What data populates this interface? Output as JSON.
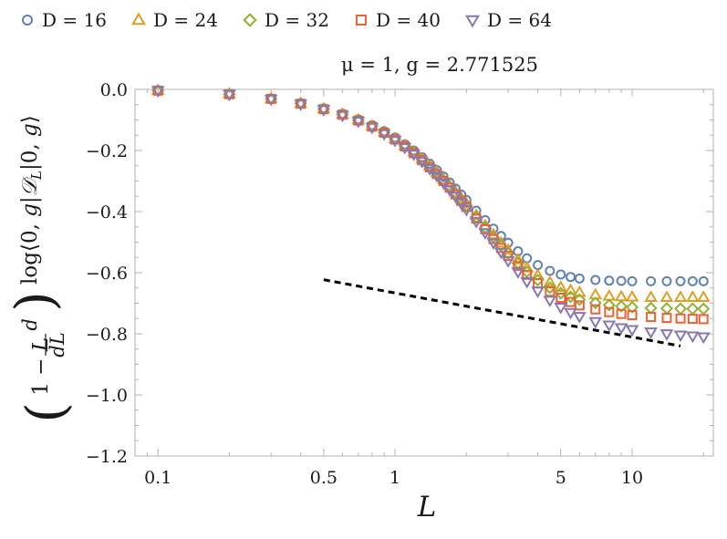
{
  "chart_data": {
    "type": "scatter",
    "title": "μ = 1,  g = 2.771525",
    "xlabel": "L",
    "ylabel": "(1 − L d/dL) log⟨0, g|𝒟_L|0, g⟩",
    "xscale": "log",
    "xlim": [
      0.08,
      22
    ],
    "ylim": [
      -1.2,
      0.0
    ],
    "x_ticks": [
      0.1,
      0.5,
      1,
      5,
      10
    ],
    "x_tick_labels": [
      "0.1",
      "0.5",
      "1",
      "5",
      "10"
    ],
    "y_ticks": [
      0.0,
      -0.2,
      -0.4,
      -0.6,
      -0.8,
      -1.0,
      -1.2
    ],
    "y_tick_labels": [
      "0.0",
      "−0.2",
      "−0.4",
      "−0.6",
      "−0.8",
      "−1.0",
      "−1.2"
    ],
    "legend_position": "top",
    "x": [
      0.1,
      0.2,
      0.3,
      0.4,
      0.5,
      0.6,
      0.7,
      0.8,
      0.9,
      1.0,
      1.1,
      1.2,
      1.3,
      1.4,
      1.5,
      1.6,
      1.7,
      1.8,
      1.9,
      2.0,
      2.2,
      2.4,
      2.6,
      2.8,
      3.0,
      3.3,
      3.6,
      4.0,
      4.5,
      5.0,
      5.5,
      6.0,
      7.0,
      8.0,
      9.0,
      10.0,
      12.0,
      14.0,
      16.0,
      18.0,
      20.0
    ],
    "series": [
      {
        "name": "D = 16",
        "marker": "circle",
        "color": "#5e81b5",
        "values": [
          -0.004,
          -0.015,
          -0.03,
          -0.045,
          -0.062,
          -0.08,
          -0.098,
          -0.117,
          -0.137,
          -0.158,
          -0.18,
          -0.2,
          -0.222,
          -0.243,
          -0.264,
          -0.285,
          -0.305,
          -0.325,
          -0.344,
          -0.362,
          -0.397,
          -0.428,
          -0.456,
          -0.48,
          -0.502,
          -0.53,
          -0.553,
          -0.575,
          -0.594,
          -0.606,
          -0.614,
          -0.619,
          -0.624,
          -0.626,
          -0.627,
          -0.628,
          -0.628,
          -0.628,
          -0.628,
          -0.628,
          -0.628
        ]
      },
      {
        "name": "D = 24",
        "marker": "triangle",
        "color": "#e19c24",
        "values": [
          -0.004,
          -0.015,
          -0.031,
          -0.046,
          -0.064,
          -0.082,
          -0.1,
          -0.12,
          -0.14,
          -0.162,
          -0.184,
          -0.205,
          -0.228,
          -0.25,
          -0.272,
          -0.294,
          -0.315,
          -0.336,
          -0.356,
          -0.375,
          -0.412,
          -0.446,
          -0.476,
          -0.503,
          -0.527,
          -0.558,
          -0.584,
          -0.609,
          -0.632,
          -0.648,
          -0.658,
          -0.665,
          -0.673,
          -0.677,
          -0.679,
          -0.68,
          -0.681,
          -0.681,
          -0.681,
          -0.681,
          -0.681
        ]
      },
      {
        "name": "D = 32",
        "marker": "diamond",
        "color": "#8fb032",
        "values": [
          -0.004,
          -0.016,
          -0.031,
          -0.046,
          -0.064,
          -0.082,
          -0.101,
          -0.121,
          -0.141,
          -0.163,
          -0.186,
          -0.207,
          -0.23,
          -0.253,
          -0.275,
          -0.297,
          -0.319,
          -0.34,
          -0.361,
          -0.381,
          -0.418,
          -0.453,
          -0.484,
          -0.512,
          -0.537,
          -0.569,
          -0.597,
          -0.624,
          -0.649,
          -0.667,
          -0.679,
          -0.688,
          -0.699,
          -0.706,
          -0.71,
          -0.713,
          -0.716,
          -0.717,
          -0.718,
          -0.718,
          -0.718
        ]
      },
      {
        "name": "D = 40",
        "marker": "square",
        "color": "#eb6235",
        "values": [
          -0.004,
          -0.016,
          -0.031,
          -0.047,
          -0.065,
          -0.083,
          -0.102,
          -0.122,
          -0.142,
          -0.164,
          -0.187,
          -0.209,
          -0.232,
          -0.255,
          -0.277,
          -0.3,
          -0.322,
          -0.344,
          -0.365,
          -0.385,
          -0.423,
          -0.458,
          -0.49,
          -0.519,
          -0.545,
          -0.578,
          -0.607,
          -0.635,
          -0.662,
          -0.682,
          -0.696,
          -0.707,
          -0.72,
          -0.729,
          -0.735,
          -0.739,
          -0.745,
          -0.748,
          -0.75,
          -0.751,
          -0.752
        ]
      },
      {
        "name": "D = 64",
        "marker": "triangle-down",
        "color": "#8778b3",
        "values": [
          -0.004,
          -0.016,
          -0.032,
          -0.048,
          -0.066,
          -0.085,
          -0.104,
          -0.124,
          -0.145,
          -0.167,
          -0.19,
          -0.212,
          -0.236,
          -0.259,
          -0.282,
          -0.305,
          -0.328,
          -0.35,
          -0.372,
          -0.393,
          -0.432,
          -0.469,
          -0.502,
          -0.533,
          -0.561,
          -0.597,
          -0.629,
          -0.66,
          -0.69,
          -0.713,
          -0.73,
          -0.743,
          -0.76,
          -0.771,
          -0.78,
          -0.786,
          -0.794,
          -0.8,
          -0.804,
          -0.807,
          -0.81
        ]
      }
    ],
    "reference_line": {
      "style": "dashed",
      "color": "#000000",
      "x": [
        0.5,
        16.0
      ],
      "y": [
        -0.623,
        -0.84
      ]
    }
  }
}
